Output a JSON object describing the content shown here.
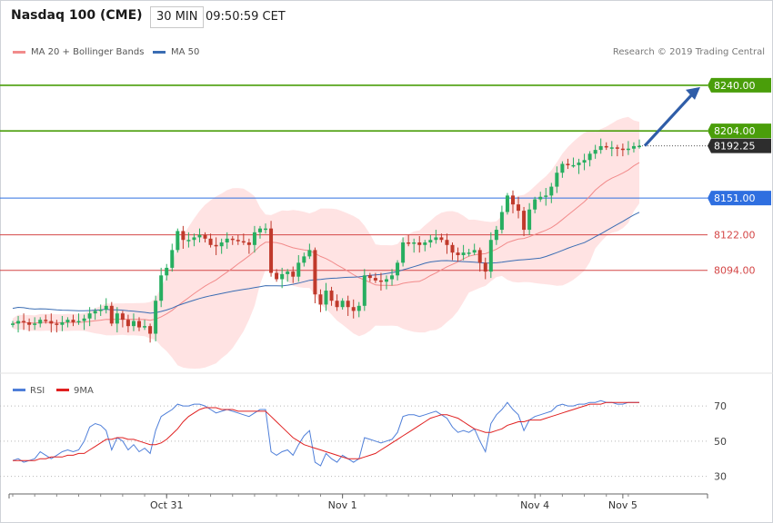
{
  "header": {
    "title": "Nasdaq 100 (CME)",
    "interval": "30 MIN",
    "time": "09:50:59 CET"
  },
  "legend": {
    "ma20_label": "MA 20 + Bollinger Bands",
    "ma50_label": "MA 50",
    "credit": "Research © 2019 Trading Central"
  },
  "colors": {
    "bull": "#27ae60",
    "bear": "#c0392b",
    "band_fill": "#ffdada",
    "ma20": "#f28b8b",
    "ma50": "#3b6db3",
    "green_level": "#4a9e0a",
    "blue_level": "#2f6fe0",
    "red_level": "#d44747",
    "rsi": "#4f7fd9",
    "rsi_ma": "#e02020",
    "arrow": "#2f5da8",
    "last_price_bg": "#2d2d2d"
  },
  "chart_data": [
    {
      "type": "candlestick",
      "title": "Nasdaq 100 (CME)",
      "interval": "30 MIN",
      "ylim": [
        8015,
        8260
      ],
      "levels": [
        {
          "label": "8240.00",
          "value": 8240,
          "style": "green"
        },
        {
          "label": "8204.00",
          "value": 8204,
          "style": "green"
        },
        {
          "label": "8151.00",
          "value": 8151,
          "style": "blue"
        },
        {
          "label": "8122.00",
          "value": 8122,
          "style": "red"
        },
        {
          "label": "8094.00",
          "value": 8094,
          "style": "red"
        }
      ],
      "last_price": {
        "label": "8192.25",
        "value": 8192.25
      },
      "target_arrow": {
        "from": 8192.25,
        "to": 8240
      },
      "x_labels": [
        {
          "label": "Oct 31",
          "index": 28
        },
        {
          "label": "Nov 1",
          "index": 60
        },
        {
          "label": "Nov 4",
          "index": 95
        },
        {
          "label": "Nov 5",
          "index": 111
        }
      ],
      "close": [
        8052,
        8054,
        8053,
        8051,
        8052,
        8055,
        8054,
        8052,
        8051,
        8053,
        8055,
        8053,
        8054,
        8056,
        8060,
        8062,
        8063,
        8066,
        8052,
        8060,
        8055,
        8050,
        8054,
        8049,
        8050,
        8044,
        8070,
        8090,
        8096,
        8110,
        8125,
        8118,
        8118,
        8120,
        8122,
        8119,
        8114,
        8113,
        8116,
        8119,
        8118,
        8117,
        8116,
        8114,
        8124,
        8127,
        8127,
        8092,
        8087,
        8091,
        8093,
        8089,
        8100,
        8105,
        8110,
        8075,
        8067,
        8078,
        8070,
        8065,
        8070,
        8065,
        8062,
        8066,
        8090,
        8088,
        8086,
        8085,
        8087,
        8090,
        8100,
        8116,
        8115,
        8116,
        8114,
        8116,
        8118,
        8120,
        8118,
        8114,
        8108,
        8106,
        8108,
        8108,
        8110,
        8100,
        8093,
        8118,
        8126,
        8140,
        8153,
        8146,
        8141,
        8126,
        8142,
        8150,
        8152,
        8153,
        8160,
        8171,
        8178,
        8177,
        8177,
        8179,
        8181,
        8186,
        8189,
        8192,
        8191,
        8191,
        8190,
        8189,
        8190,
        8192,
        8192.25
      ],
      "rsi": {
        "ylim": [
          20,
          85
        ],
        "ticks": [
          30,
          50,
          70
        ],
        "series": [
          {
            "name": "RSI",
            "values": [
              39,
              40,
              38,
              39,
              40,
              44,
              42,
              40,
              42,
              44,
              45,
              44,
              45,
              50,
              58,
              60,
              59,
              56,
              45,
              52,
              50,
              45,
              48,
              44,
              46,
              43,
              56,
              64,
              66,
              68,
              71,
              70,
              70,
              71,
              71,
              70,
              68,
              66,
              67,
              68,
              67,
              66,
              65,
              64,
              66,
              68,
              68,
              44,
              42,
              44,
              45,
              42,
              48,
              53,
              56,
              38,
              36,
              43,
              40,
              38,
              42,
              40,
              38,
              40,
              52,
              51,
              50,
              49,
              50,
              51,
              55,
              64,
              65,
              65,
              64,
              65,
              66,
              67,
              65,
              63,
              58,
              55,
              56,
              55,
              57,
              50,
              44,
              60,
              65,
              68,
              72,
              68,
              65,
              56,
              62,
              64,
              65,
              66,
              67,
              70,
              71,
              70,
              70,
              71,
              71,
              72,
              72,
              73,
              72,
              72,
              71,
              71,
              72,
              72,
              72
            ]
          },
          {
            "name": "9MA",
            "values": [
              39,
              39,
              39,
              39,
              39,
              40,
              40,
              41,
              41,
              41,
              42,
              42,
              43,
              43,
              45,
              47,
              49,
              51,
              51,
              52,
              52,
              51,
              51,
              50,
              49,
              48,
              48,
              49,
              51,
              54,
              57,
              61,
              64,
              66,
              68,
              69,
              69,
              69,
              68,
              68,
              68,
              67,
              67,
              67,
              67,
              67,
              67,
              64,
              61,
              58,
              55,
              52,
              50,
              48,
              47,
              46,
              45,
              44,
              43,
              42,
              41,
              40,
              40,
              40,
              41,
              42,
              43,
              45,
              47,
              49,
              51,
              53,
              55,
              57,
              59,
              61,
              63,
              64,
              65,
              65,
              64,
              63,
              61,
              59,
              57,
              56,
              55,
              55,
              56,
              57,
              59,
              60,
              61,
              61,
              62,
              62,
              62,
              63,
              64,
              65,
              66,
              67,
              68,
              69,
              70,
              71,
              71,
              71,
              72,
              72,
              72,
              72,
              72,
              72,
              72
            ]
          }
        ]
      }
    }
  ]
}
